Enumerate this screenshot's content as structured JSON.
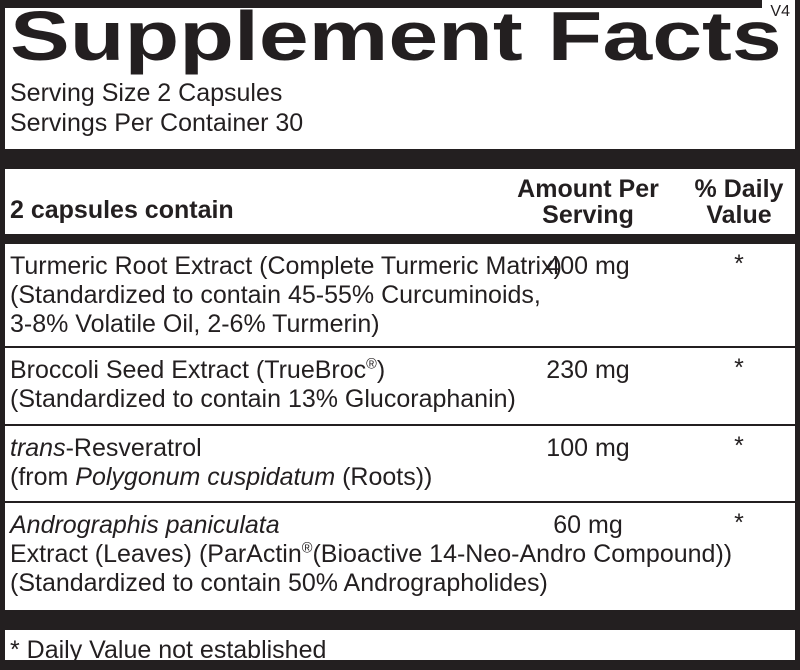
{
  "panel": {
    "version_tag": "V4",
    "title": "Supplement Facts",
    "serving_size": "Serving Size 2 Capsules",
    "servings_per_container": "Servings Per Container 30",
    "table": {
      "header": {
        "contain_label": "2 capsules contain",
        "amount_col": [
          "Amount Per",
          "Serving"
        ],
        "daily_value_col": [
          "% Daily",
          "Value"
        ]
      },
      "rows": [
        {
          "name_lines": [
            [
              {
                "t": "Turmeric Root Extract (Complete Turmeric Matrix)"
              }
            ],
            [
              {
                "t": "(Standardized to contain 45-55% Curcuminoids,"
              }
            ],
            [
              {
                "t": "3-8% Volatile Oil, 2-6% Turmerin)"
              }
            ]
          ],
          "amount": "400 mg",
          "daily_value": "*"
        },
        {
          "name_lines": [
            [
              {
                "t": "Broccoli Seed Extract (TrueBroc"
              },
              {
                "t": "®",
                "s": "sup"
              },
              {
                "t": ")"
              }
            ],
            [
              {
                "t": "(Standardized to contain 13% Glucoraphanin)"
              }
            ]
          ],
          "amount": "230 mg",
          "daily_value": "*"
        },
        {
          "name_lines": [
            [
              {
                "t": "trans",
                "s": "i"
              },
              {
                "t": "-Resveratrol"
              }
            ],
            [
              {
                "t": "(from "
              },
              {
                "t": "Polygonum cuspidatum",
                "s": "i"
              },
              {
                "t": " (Roots))"
              }
            ]
          ],
          "amount": "100 mg",
          "daily_value": "*"
        },
        {
          "name_lines": [
            [
              {
                "t": "Andrographis paniculata",
                "s": "i"
              }
            ],
            [
              {
                "t": "Extract (Leaves) (ParActin"
              },
              {
                "t": "®",
                "s": "sup"
              },
              {
                "t": "(Bioactive 14-Neo-Andro Compound))"
              }
            ],
            [
              {
                "t": "(Standardized to contain 50% Andrographolides)"
              }
            ]
          ],
          "amount": "60 mg",
          "daily_value": "*"
        }
      ]
    },
    "footnote": "* Daily Value not established"
  },
  "colors": {
    "ink": "#231f20",
    "paper": "#ffffff"
  }
}
